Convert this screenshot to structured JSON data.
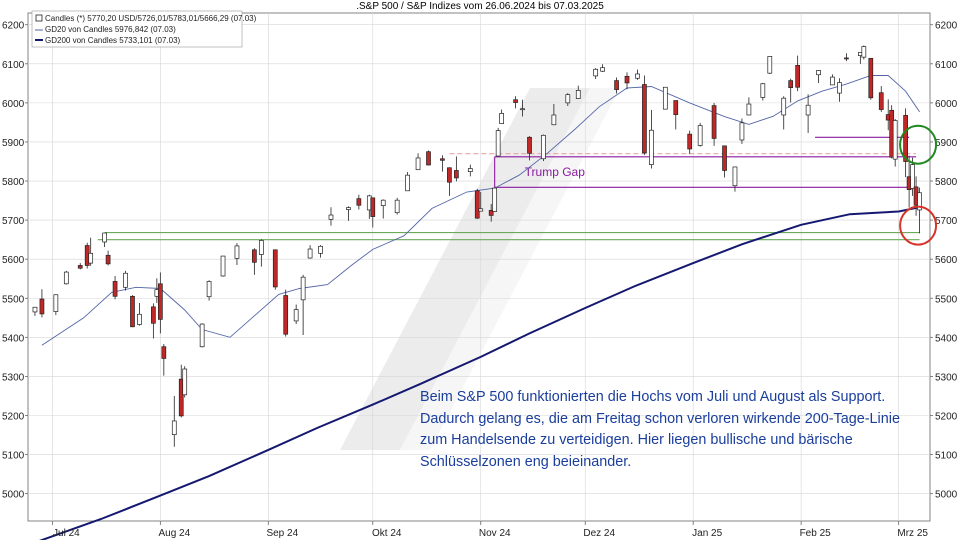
{
  "chart_data": {
    "type": "candlestick",
    "title": ".S&P 500 / S&P Indizes vom 26.06.2024 bis 07.03.2025",
    "y_ticks": [
      5000,
      5100,
      5200,
      5300,
      5400,
      5500,
      5600,
      5700,
      5800,
      5900,
      6000,
      6100,
      6200
    ],
    "ylim": [
      4930,
      6230
    ],
    "xlim": [
      "2024-06-24",
      "2025-03-10"
    ],
    "x_ticks": [
      {
        "label": "Jul 24",
        "date": "2024-07-01"
      },
      {
        "label": "Aug 24",
        "date": "2024-08-01"
      },
      {
        "label": "Sep 24",
        "date": "2024-09-01"
      },
      {
        "label": "Okt 24",
        "date": "2024-10-01"
      },
      {
        "label": "Nov 24",
        "date": "2024-11-01"
      },
      {
        "label": "Dez 24",
        "date": "2024-12-01"
      },
      {
        "label": "Jan 25",
        "date": "2025-01-01"
      },
      {
        "label": "Feb 25",
        "date": "2025-02-01"
      },
      {
        "label": "Mrz 25",
        "date": "2025-03-01"
      }
    ],
    "legend": {
      "placement": "top-left",
      "entries": [
        "Candles (*) 5770,20 USD/5726,01/5783,01/5666,29 (07.03)",
        "GD20 von Candles 5976,842 (07.03)",
        "GD200 von Candles 5733,101 (07.03)"
      ]
    },
    "candles": [
      [
        "2024-06-26",
        5465,
        5478,
        5455,
        5477
      ],
      [
        "2024-06-28",
        5498,
        5523,
        5451,
        5460
      ],
      [
        "2024-07-02",
        5466,
        5510,
        5457,
        5509
      ],
      [
        "2024-07-05",
        5537,
        5570,
        5535,
        5567
      ],
      [
        "2024-07-09",
        5584,
        5590,
        5574,
        5577
      ],
      [
        "2024-07-11",
        5635,
        5642,
        5576,
        5584
      ],
      [
        "2024-07-12",
        5590,
        5655,
        5583,
        5615
      ],
      [
        "2024-07-16",
        5644,
        5667,
        5631,
        5667
      ],
      [
        "2024-07-17",
        5610,
        5622,
        5584,
        5588
      ],
      [
        "2024-07-19",
        5543,
        5557,
        5497,
        5505
      ],
      [
        "2024-07-22",
        5528,
        5570,
        5520,
        5564
      ],
      [
        "2024-07-24",
        5505,
        5508,
        5426,
        5427
      ],
      [
        "2024-07-26",
        5433,
        5488,
        5430,
        5459
      ],
      [
        "2024-07-30",
        5478,
        5487,
        5397,
        5436
      ],
      [
        "2024-07-31",
        5505,
        5551,
        5488,
        5522
      ],
      [
        "2024-08-01",
        5537,
        5566,
        5410,
        5446
      ],
      [
        "2024-08-02",
        5376,
        5383,
        5302,
        5346
      ],
      [
        "2024-08-05",
        5151,
        5250,
        5120,
        5186
      ],
      [
        "2024-08-07",
        5293,
        5330,
        5195,
        5199
      ],
      [
        "2024-08-08",
        5253,
        5326,
        5246,
        5319
      ],
      [
        "2024-08-13",
        5376,
        5436,
        5374,
        5434
      ],
      [
        "2024-08-15",
        5504,
        5546,
        5494,
        5543
      ],
      [
        "2024-08-19",
        5557,
        5608,
        5555,
        5608
      ],
      [
        "2024-08-23",
        5602,
        5641,
        5585,
        5634
      ],
      [
        "2024-08-28",
        5624,
        5628,
        5560,
        5592
      ],
      [
        "2024-08-30",
        5612,
        5651,
        5581,
        5648
      ],
      [
        "2024-09-03",
        5624,
        5624,
        5522,
        5529
      ],
      [
        "2024-09-06",
        5507,
        5522,
        5402,
        5408
      ],
      [
        "2024-09-09",
        5442,
        5484,
        5434,
        5471
      ],
      [
        "2024-09-11",
        5496,
        5560,
        5406,
        5554
      ],
      [
        "2024-09-13",
        5603,
        5636,
        5601,
        5626
      ],
      [
        "2024-09-16",
        5615,
        5636,
        5604,
        5633
      ],
      [
        "2024-09-19",
        5702,
        5733,
        5686,
        5713
      ],
      [
        "2024-09-24",
        5727,
        5735,
        5698,
        5732
      ],
      [
        "2024-09-27",
        5755,
        5765,
        5727,
        5738
      ],
      [
        "2024-09-30",
        5726,
        5765,
        5703,
        5762
      ],
      [
        "2024-10-01",
        5757,
        5757,
        5681,
        5709
      ],
      [
        "2024-10-04",
        5737,
        5753,
        5704,
        5751
      ],
      [
        "2024-10-08",
        5719,
        5757,
        5714,
        5751
      ],
      [
        "2024-10-11",
        5775,
        5823,
        5775,
        5815
      ],
      [
        "2024-10-14",
        5829,
        5871,
        5829,
        5859
      ],
      [
        "2024-10-17",
        5875,
        5878,
        5840,
        5841
      ],
      [
        "2024-10-21",
        5857,
        5866,
        5824,
        5853
      ],
      [
        "2024-10-23",
        5834,
        5835,
        5762,
        5797
      ],
      [
        "2024-10-25",
        5827,
        5863,
        5799,
        5808
      ],
      [
        "2024-10-29",
        5824,
        5842,
        5812,
        5832
      ],
      [
        "2024-10-31",
        5775,
        5780,
        5703,
        5705
      ],
      [
        "2024-11-01",
        5723,
        5772,
        5723,
        5729
      ],
      [
        "2024-11-04",
        5725,
        5741,
        5696,
        5712
      ],
      [
        "2024-11-05",
        5722,
        5783,
        5721,
        5782
      ],
      [
        "2024-11-06",
        5864,
        5936,
        5864,
        5929
      ],
      [
        "2024-11-07",
        5947,
        5983,
        5947,
        5973
      ],
      [
        "2024-11-11",
        6008,
        6017,
        5986,
        6001
      ],
      [
        "2024-11-13",
        5985,
        6008,
        5965,
        5985
      ],
      [
        "2024-11-15",
        5912,
        5915,
        5853,
        5871
      ],
      [
        "2024-11-19",
        5857,
        5919,
        5851,
        5917
      ],
      [
        "2024-11-22",
        5944,
        5997,
        5943,
        5969
      ],
      [
        "2024-11-26",
        6000,
        6025,
        5992,
        6021
      ],
      [
        "2024-11-29",
        6011,
        6044,
        6010,
        6032
      ],
      [
        "2024-12-04",
        6069,
        6089,
        6061,
        6086
      ],
      [
        "2024-12-06",
        6081,
        6099,
        6079,
        6090
      ],
      [
        "2024-12-10",
        6057,
        6065,
        6024,
        6034
      ],
      [
        "2024-12-13",
        6068,
        6078,
        6035,
        6051
      ],
      [
        "2024-12-16",
        6063,
        6085,
        6059,
        6074
      ],
      [
        "2024-12-18",
        6047,
        6070,
        5867,
        5872
      ],
      [
        "2024-12-20",
        5842,
        5982,
        5832,
        5930
      ],
      [
        "2024-12-24",
        5984,
        6040,
        5983,
        6040
      ],
      [
        "2024-12-27",
        6006,
        6006,
        5932,
        5970
      ],
      [
        "2024-12-31",
        5920,
        5929,
        5869,
        5882
      ],
      [
        "2025-01-03",
        5891,
        5949,
        5888,
        5942
      ],
      [
        "2025-01-07",
        5993,
        6000,
        5890,
        5909
      ],
      [
        "2025-01-10",
        5890,
        5891,
        5809,
        5827
      ],
      [
        "2025-01-13",
        5788,
        5837,
        5773,
        5836
      ],
      [
        "2025-01-15",
        5905,
        5960,
        5895,
        5949
      ],
      [
        "2025-01-17",
        5969,
        6014,
        5968,
        5997
      ],
      [
        "2025-01-21",
        6014,
        6051,
        6006,
        6049
      ],
      [
        "2025-01-23",
        6076,
        6119,
        6074,
        6119
      ],
      [
        "2025-01-27",
        5969,
        6017,
        5932,
        6012
      ],
      [
        "2025-01-29",
        6057,
        6062,
        6001,
        6039
      ],
      [
        "2025-01-31",
        6096,
        6121,
        6030,
        6040
      ],
      [
        "2025-02-03",
        5969,
        6022,
        5923,
        5994
      ],
      [
        "2025-02-06",
        6072,
        6084,
        6051,
        6083
      ],
      [
        "2025-02-10",
        6046,
        6073,
        6046,
        6066
      ],
      [
        "2025-02-12",
        6025,
        6063,
        6003,
        6052
      ],
      [
        "2025-02-14",
        6115,
        6127,
        6107,
        6114
      ],
      [
        "2025-02-18",
        6121,
        6129,
        6100,
        6129
      ],
      [
        "2025-02-19",
        6117,
        6147,
        6111,
        6144
      ],
      [
        "2025-02-21",
        6114,
        6114,
        6008,
        6013
      ],
      [
        "2025-02-24",
        6026,
        6043,
        5977,
        5983
      ],
      [
        "2025-02-26",
        5970,
        6009,
        5930,
        5956
      ],
      [
        "2025-02-27",
        5981,
        5994,
        5858,
        5861
      ],
      [
        "2025-02-28",
        5856,
        5959,
        5837,
        5955
      ],
      [
        "2025-03-03",
        5968,
        5986,
        5810,
        5850
      ],
      [
        "2025-03-04",
        5811,
        5865,
        5732,
        5778
      ],
      [
        "2025-03-05",
        5781,
        5860,
        5762,
        5842
      ],
      [
        "2025-03-06",
        5785,
        5812,
        5711,
        5738
      ],
      [
        "2025-03-07",
        5726,
        5783,
        5666,
        5770
      ]
    ],
    "gd20": [
      [
        "2024-06-28",
        5380
      ],
      [
        "2024-07-10",
        5450
      ],
      [
        "2024-07-18",
        5515
      ],
      [
        "2024-07-25",
        5528
      ],
      [
        "2024-08-01",
        5525
      ],
      [
        "2024-08-08",
        5470
      ],
      [
        "2024-08-13",
        5420
      ],
      [
        "2024-08-21",
        5400
      ],
      [
        "2024-08-28",
        5455
      ],
      [
        "2024-09-04",
        5510
      ],
      [
        "2024-09-10",
        5525
      ],
      [
        "2024-09-18",
        5535
      ],
      [
        "2024-09-25",
        5585
      ],
      [
        "2024-10-01",
        5625
      ],
      [
        "2024-10-10",
        5660
      ],
      [
        "2024-10-18",
        5730
      ],
      [
        "2024-10-28",
        5772
      ],
      [
        "2024-11-05",
        5782
      ],
      [
        "2024-11-12",
        5815
      ],
      [
        "2024-11-20",
        5870
      ],
      [
        "2024-11-28",
        5932
      ],
      [
        "2024-12-05",
        5990
      ],
      [
        "2024-12-13",
        6038
      ],
      [
        "2024-12-20",
        6042
      ],
      [
        "2024-12-31",
        6000
      ],
      [
        "2025-01-10",
        5965
      ],
      [
        "2025-01-17",
        5945
      ],
      [
        "2025-01-24",
        5966
      ],
      [
        "2025-01-31",
        6005
      ],
      [
        "2025-02-07",
        6030
      ],
      [
        "2025-02-14",
        6048
      ],
      [
        "2025-02-21",
        6070
      ],
      [
        "2025-02-26",
        6070
      ],
      [
        "2025-03-03",
        6030
      ],
      [
        "2025-03-07",
        5977
      ]
    ],
    "gd200": [
      [
        "2024-06-26",
        4875
      ],
      [
        "2024-07-15",
        4935
      ],
      [
        "2024-08-01",
        4995
      ],
      [
        "2024-08-15",
        5045
      ],
      [
        "2024-09-01",
        5112
      ],
      [
        "2024-09-15",
        5168
      ],
      [
        "2024-10-01",
        5228
      ],
      [
        "2024-10-15",
        5282
      ],
      [
        "2024-11-01",
        5350
      ],
      [
        "2024-11-15",
        5410
      ],
      [
        "2024-12-01",
        5475
      ],
      [
        "2024-12-15",
        5530
      ],
      [
        "2025-01-01",
        5590
      ],
      [
        "2025-01-15",
        5638
      ],
      [
        "2025-02-01",
        5688
      ],
      [
        "2025-02-15",
        5715
      ],
      [
        "2025-03-01",
        5722
      ],
      [
        "2025-03-07",
        5733
      ]
    ],
    "levels": [
      {
        "y": 5870,
        "x0": "2024-10-23",
        "x1": "2025-03-06",
        "color": "#e8a6a6",
        "dash": true
      },
      {
        "y": 5862,
        "x0": "2024-11-05",
        "x1": "2025-03-06",
        "color": "#8a1aa0",
        "dash": false
      },
      {
        "y": 5784,
        "x0": "2024-11-05",
        "x1": "2025-03-06",
        "color": "#8a1aa0",
        "dash": false
      },
      {
        "y": 5912,
        "x0": "2025-02-05",
        "x1": "2025-03-04",
        "color": "#8a1aa0",
        "dash": false
      },
      {
        "y": 5668,
        "x0": "2024-07-16",
        "x1": "2025-03-07",
        "color": "#6aaa5a",
        "dash": false
      },
      {
        "y": 5650,
        "x0": "2024-07-14",
        "x1": "2025-03-07",
        "color": "#6aaa5a",
        "dash": false
      }
    ],
    "trump_gap": {
      "label": "Trump Gap",
      "y_top": 5862,
      "y_bottom": 5784,
      "date": "2024-11-05",
      "color": "#8a1aa0"
    },
    "circles": [
      {
        "date": "2025-03-06",
        "y": 5893,
        "color": "#1f8a1f"
      },
      {
        "date": "2025-03-06",
        "y": 5686,
        "color": "#d8332a"
      }
    ],
    "colors": {
      "up": "#ffffff",
      "down": "#c02828",
      "wick": "#222222",
      "gd20": "#5566a8",
      "gd200": "#141870"
    },
    "annotation": [
      "Beim S&P 500 funktionierten die Hochs vom Juli und August als Support.",
      "Dadurch gelang es, die am Freitag schon verloren wirkende 200-Tage-Linie",
      "zum Handelsende zu verteidigen. Hier liegen bullische und bärische",
      "Schlüsselzonen eng beieinander."
    ]
  }
}
